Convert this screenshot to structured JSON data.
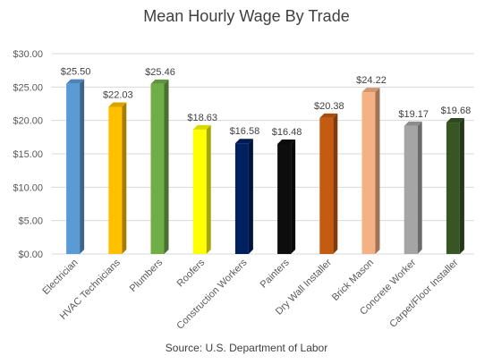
{
  "chart_data": {
    "type": "bar",
    "title": "Mean Hourly Wage By Trade",
    "source": "Source: U.S. Department of Labor",
    "xlabel": "",
    "ylabel": "",
    "ylim": [
      0,
      30
    ],
    "yticks": [
      0,
      5,
      10,
      15,
      20,
      25,
      30
    ],
    "ytick_labels": [
      "$0.00",
      "$5.00",
      "$10.00",
      "$15.00",
      "$20.00",
      "$25.00",
      "$30.00"
    ],
    "grid": true,
    "legend": "none",
    "categories": [
      "Electrician",
      "HVAC Technicians",
      "Plumbers",
      "Roofers",
      "Construction Workers",
      "Painters",
      "Dry Wall Installer",
      "Brick Mason",
      "Concrete Worker",
      "Carpet/Floor Installer"
    ],
    "values": [
      25.5,
      22.03,
      25.46,
      18.63,
      16.58,
      16.48,
      20.38,
      24.22,
      19.17,
      19.68
    ],
    "value_labels": [
      "$25.50",
      "$22.03",
      "$25.46",
      "$18.63",
      "$16.58",
      "$16.48",
      "$20.38",
      "$24.22",
      "$19.17",
      "$19.68"
    ],
    "colors": [
      "#5b9bd5",
      "#ffc000",
      "#70ad47",
      "#ffff00",
      "#002060",
      "#0d0d0d",
      "#c55a11",
      "#f4b183",
      "#a5a5a5",
      "#375623"
    ]
  }
}
